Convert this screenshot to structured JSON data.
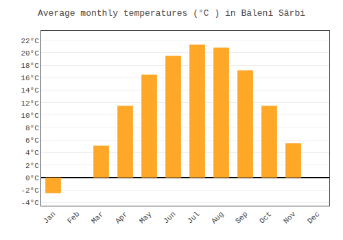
{
  "chart_data": {
    "type": "bar",
    "title": "Average monthly temperatures (°C ) in Băleni Sârbi",
    "categories": [
      "Jan",
      "Feb",
      "Mar",
      "Apr",
      "May",
      "Jun",
      "Jul",
      "Aug",
      "Sep",
      "Oct",
      "Nov",
      "Dec"
    ],
    "values": [
      -2.5,
      0,
      5.1,
      11.5,
      16.5,
      19.5,
      21.3,
      20.8,
      17.2,
      11.5,
      5.5,
      0
    ],
    "color": "#FFA726",
    "ylim": [
      -4.5,
      23.5
    ],
    "yticks": [
      {
        "value": -4,
        "label": "-4°C"
      },
      {
        "value": -2,
        "label": "-2°C"
      },
      {
        "value": 0,
        "label": "0°C"
      },
      {
        "value": 2,
        "label": "2°C"
      },
      {
        "value": 4,
        "label": "4°C"
      },
      {
        "value": 6,
        "label": "6°C"
      },
      {
        "value": 8,
        "label": "8°C"
      },
      {
        "value": 10,
        "label": "10°C"
      },
      {
        "value": 12,
        "label": "12°C"
      },
      {
        "value": 14,
        "label": "14°C"
      },
      {
        "value": 16,
        "label": "16°C"
      },
      {
        "value": 18,
        "label": "18°C"
      },
      {
        "value": 20,
        "label": "20°C"
      },
      {
        "value": 22,
        "label": "22°C"
      }
    ],
    "grid": true
  }
}
